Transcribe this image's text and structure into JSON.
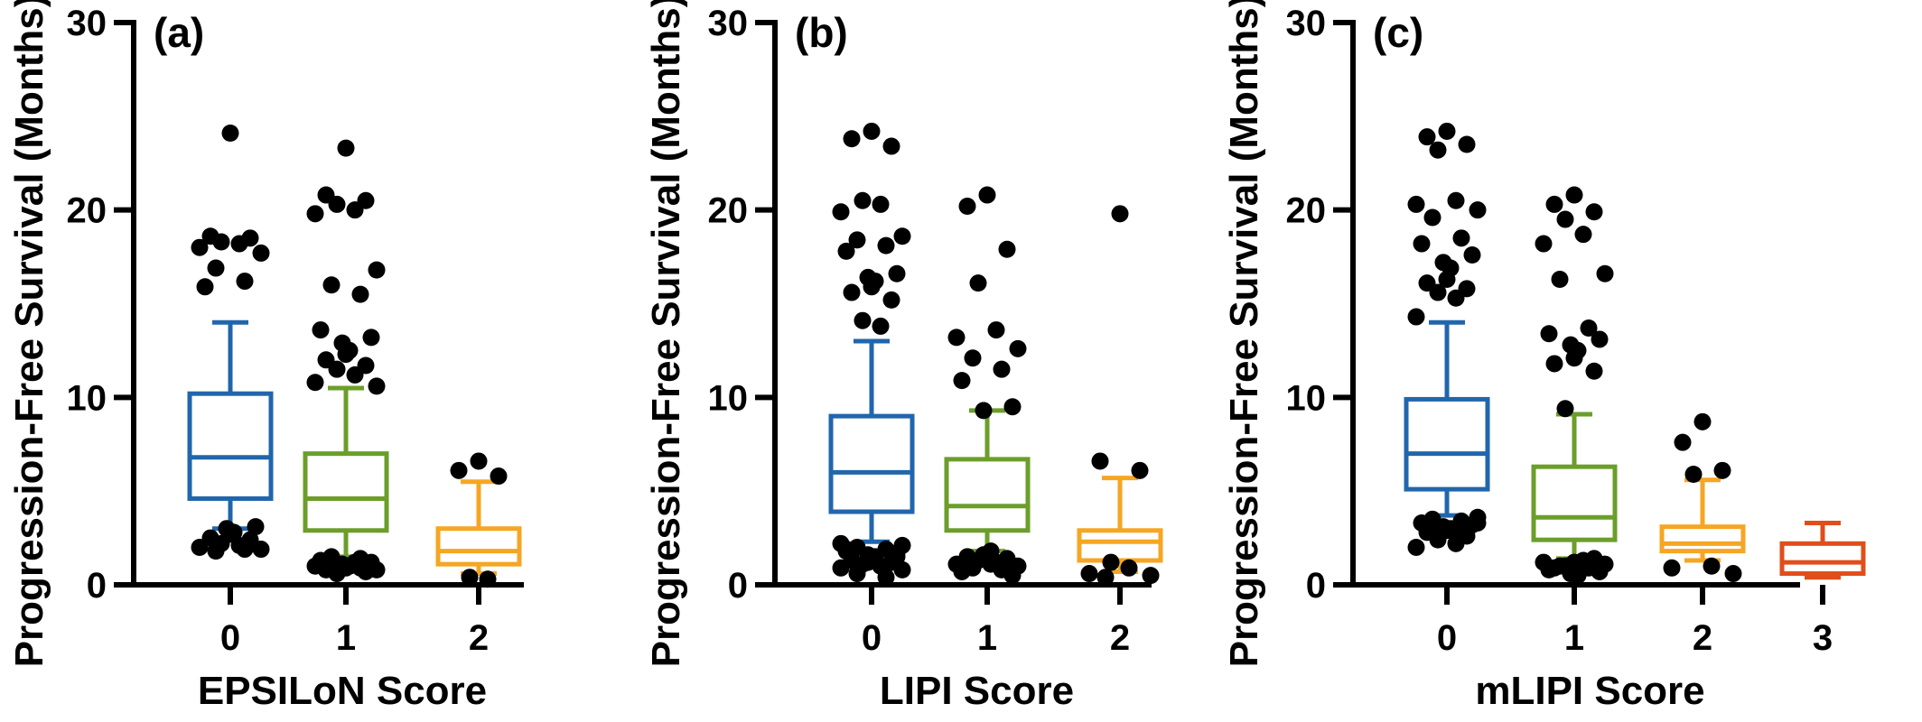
{
  "chart_data": [
    {
      "type": "box",
      "panel_label": "(a)",
      "title": "",
      "xlabel": "EPSILoN Score",
      "ylabel": "Progression-Free Survival (Months)",
      "ylim": [
        0,
        30
      ],
      "yticks": [
        0,
        10,
        20,
        30
      ],
      "categories": [
        "0",
        "1",
        "2"
      ],
      "boxes": [
        {
          "category": "0",
          "color": "#2166ac",
          "whisker_low": 3.0,
          "q1": 4.6,
          "median": 6.8,
          "q3": 10.2,
          "whisker_high": 14.0,
          "outliers": [
            24.1,
            18.6,
            18.5,
            18.3,
            18.2,
            18.0,
            17.7,
            16.9,
            16.2,
            15.9,
            3.1,
            3.0,
            2.8,
            2.7,
            2.5,
            2.4,
            2.2,
            2.1,
            2.0,
            1.9,
            1.8,
            1.9
          ]
        },
        {
          "category": "1",
          "color": "#6b9e2a",
          "whisker_low": 1.5,
          "q1": 2.9,
          "median": 4.6,
          "q3": 7.0,
          "whisker_high": 10.5,
          "outliers": [
            23.3,
            20.8,
            20.5,
            20.3,
            20.0,
            19.8,
            16.8,
            16.0,
            15.5,
            13.6,
            13.2,
            12.9,
            12.5,
            12.3,
            12.0,
            11.7,
            11.5,
            11.2,
            10.8,
            10.6,
            1.5,
            1.4,
            1.3,
            1.2,
            1.1,
            1.0,
            0.9,
            0.8,
            0.7,
            0.6,
            1.2,
            1.0,
            0.8,
            1.3,
            0.9
          ]
        },
        {
          "category": "2",
          "color": "#f5a623",
          "whisker_low": 0.6,
          "q1": 1.1,
          "median": 1.8,
          "q3": 3.0,
          "whisker_high": 5.5,
          "outliers": [
            6.6,
            6.1,
            5.8,
            0.4,
            0.3
          ]
        }
      ]
    },
    {
      "type": "box",
      "panel_label": "(b)",
      "title": "",
      "xlabel": "LIPI Score",
      "ylabel": "Progression-Free Survival (Months)",
      "ylim": [
        0,
        30
      ],
      "yticks": [
        0,
        10,
        20,
        30
      ],
      "categories": [
        "0",
        "1",
        "2"
      ],
      "boxes": [
        {
          "category": "0",
          "color": "#2166ac",
          "whisker_low": 2.3,
          "q1": 3.9,
          "median": 6.0,
          "q3": 9.0,
          "whisker_high": 13.0,
          "outliers": [
            24.2,
            23.8,
            23.4,
            20.5,
            20.3,
            19.9,
            18.6,
            18.4,
            18.1,
            17.8,
            16.6,
            16.4,
            16.2,
            15.9,
            15.6,
            15.2,
            14.1,
            13.8,
            2.2,
            2.1,
            2.0,
            1.9,
            1.8,
            1.7,
            1.6,
            1.5,
            1.4,
            1.3,
            1.2,
            1.1,
            1.0,
            0.9,
            0.8,
            0.6,
            0.4,
            1.9,
            1.5,
            1.2
          ]
        },
        {
          "category": "1",
          "color": "#6b9e2a",
          "whisker_low": 1.8,
          "q1": 2.9,
          "median": 4.2,
          "q3": 6.7,
          "whisker_high": 9.3,
          "outliers": [
            20.8,
            20.2,
            17.9,
            16.1,
            13.6,
            13.2,
            12.6,
            12.1,
            11.5,
            10.9,
            9.5,
            9.3,
            1.8,
            1.6,
            1.5,
            1.4,
            1.3,
            1.2,
            1.1,
            1.0,
            0.9,
            0.8,
            0.7,
            0.5,
            1.6,
            1.1
          ]
        },
        {
          "category": "2",
          "color": "#f5a623",
          "whisker_low": 0.7,
          "q1": 1.3,
          "median": 2.3,
          "q3": 2.9,
          "whisker_high": 5.7,
          "outliers": [
            19.8,
            6.6,
            6.1,
            1.2,
            0.9,
            0.6,
            0.5,
            0.4
          ]
        }
      ]
    },
    {
      "type": "box",
      "panel_label": "(c)",
      "title": "",
      "xlabel": "mLIPI Score",
      "ylabel": "Progression-Free Survival (Months)",
      "ylim": [
        0,
        30
      ],
      "yticks": [
        0,
        10,
        20,
        30
      ],
      "categories": [
        "0",
        "1",
        "2",
        "3"
      ],
      "boxes": [
        {
          "category": "0",
          "color": "#2166ac",
          "whisker_low": 3.7,
          "q1": 5.1,
          "median": 7.0,
          "q3": 9.9,
          "whisker_high": 14.0,
          "outliers": [
            24.2,
            23.9,
            23.5,
            23.2,
            20.5,
            20.3,
            20.0,
            19.6,
            18.5,
            18.2,
            17.6,
            17.2,
            16.9,
            16.3,
            16.1,
            15.8,
            15.6,
            15.3,
            14.3,
            3.6,
            3.5,
            3.4,
            3.3,
            3.2,
            3.1,
            3.0,
            2.9,
            2.8,
            2.6,
            2.4,
            2.2,
            2.0,
            3.3,
            3.0,
            2.7
          ]
        },
        {
          "category": "1",
          "color": "#6b9e2a",
          "whisker_low": 1.4,
          "q1": 2.4,
          "median": 3.6,
          "q3": 6.3,
          "whisker_high": 9.1,
          "outliers": [
            20.8,
            20.3,
            19.9,
            19.5,
            18.7,
            18.2,
            16.6,
            16.3,
            13.7,
            13.4,
            13.1,
            12.8,
            12.5,
            12.1,
            11.8,
            11.4,
            9.4,
            1.3,
            1.2,
            1.1,
            1.0,
            0.9,
            0.8,
            0.7,
            0.6,
            0.5,
            1.2,
            0.9,
            1.4,
            1.0
          ]
        },
        {
          "category": "2",
          "color": "#f5a623",
          "whisker_low": 1.3,
          "q1": 1.8,
          "median": 2.2,
          "q3": 3.1,
          "whisker_high": 5.6,
          "outliers": [
            8.7,
            7.6,
            6.1,
            5.9,
            1.0,
            0.9,
            0.6
          ]
        },
        {
          "category": "3",
          "color": "#e04e1b",
          "whisker_low": 0.4,
          "q1": 0.6,
          "median": 1.2,
          "q3": 2.2,
          "whisker_high": 3.3,
          "outliers": []
        }
      ]
    }
  ]
}
